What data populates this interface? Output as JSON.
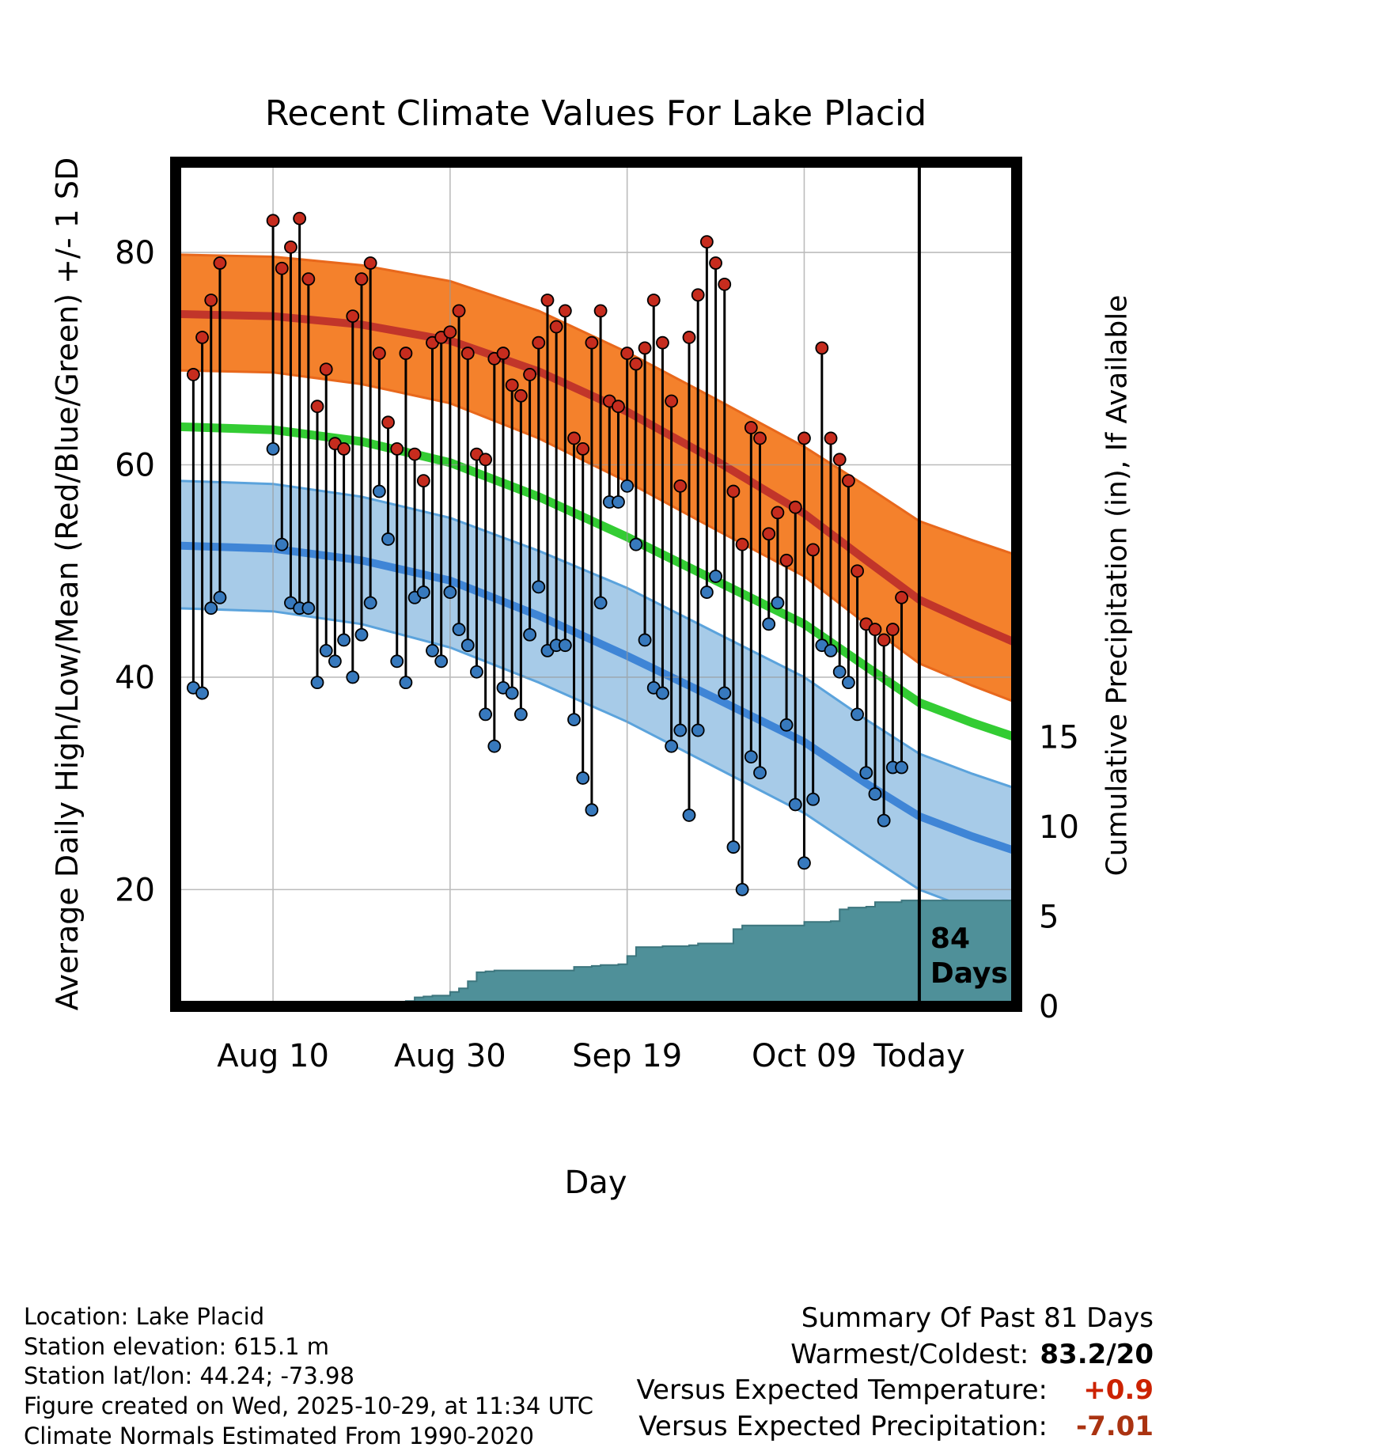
{
  "title": "Recent Climate Values For Lake Placid",
  "axes": {
    "left_label": "Average Daily High/Low/Mean (Red/Blue/Green) +/- 1 SD",
    "right_label": "Cumulative Precipitation (in), If Available",
    "x_label": "Day",
    "left_ticks": [
      20,
      40,
      60,
      80
    ],
    "right_ticks": [
      0,
      5,
      10,
      15
    ],
    "x_ticks": [
      {
        "day": 11,
        "label": "Aug 10"
      },
      {
        "day": 31,
        "label": "Aug 30"
      },
      {
        "day": 51,
        "label": "Sep 19"
      },
      {
        "day": 71,
        "label": "Oct 09"
      },
      {
        "day": 84,
        "label": "Today"
      }
    ]
  },
  "annotation": {
    "line1": "84",
    "line2": "Days",
    "today_day": 84
  },
  "chart_data": {
    "type": "line",
    "title": "Recent Climate Values For Lake Placid",
    "xlabel": "Day",
    "ylabel_left": "Average Daily High/Low/Mean (Red/Blue/Green) +/- 1 SD",
    "ylabel_right": "Cumulative Precipitation (in), If Available",
    "layout": {
      "xlim": [
        0,
        95
      ],
      "ylim_temp": [
        9,
        88.5
      ],
      "ylim_precip": [
        0,
        47
      ],
      "grid": true
    },
    "colors": {
      "high_band": "#f4812c",
      "high_band_edge": "#e8681c",
      "high_mean": "#c1352a",
      "mean_green": "#33cc33",
      "low_band": "#a7cbe8",
      "low_band_edge": "#5ba3dc",
      "low_mean": "#3f85d6",
      "precip_fill": "#4f9099",
      "precip_edge": "#3d767e",
      "scatter_high": "#c62c1e",
      "scatter_low": "#3779bd",
      "dot_stroke": "#000000",
      "grid": "#999999",
      "today_line": "#000000"
    },
    "normals_bands": {
      "days": [
        0,
        11,
        21,
        31,
        41,
        51,
        61,
        71,
        78,
        84,
        90,
        95
      ],
      "high_band_upper": [
        79.8,
        79.6,
        78.8,
        77.3,
        74.5,
        70.6,
        66.2,
        61.7,
        58.0,
        54.7,
        52.9,
        51.5
      ],
      "high_mean": [
        74.2,
        74.0,
        73.2,
        71.7,
        68.8,
        65.0,
        60.4,
        55.4,
        51.0,
        47.3,
        45.0,
        43.2
      ],
      "high_band_lower": [
        68.9,
        68.7,
        67.6,
        65.8,
        62.5,
        58.4,
        53.9,
        49.5,
        45.0,
        41.3,
        39.2,
        37.6
      ],
      "mean_green": [
        63.6,
        63.3,
        62.2,
        60.2,
        57.0,
        53.2,
        49.1,
        45.0,
        41.0,
        37.6,
        35.7,
        34.3
      ],
      "low_band_upper": [
        58.5,
        58.2,
        57.0,
        55.0,
        51.9,
        48.4,
        44.2,
        40.0,
        36.0,
        32.8,
        30.9,
        29.5
      ],
      "low_mean": [
        52.4,
        52.1,
        51.0,
        49.1,
        45.8,
        42.0,
        38.0,
        33.9,
        30.0,
        26.9,
        25.0,
        23.6
      ],
      "low_band_lower": [
        46.5,
        46.2,
        45.0,
        42.8,
        39.5,
        35.8,
        31.5,
        27.2,
        23.3,
        20.0,
        18.1,
        16.7
      ]
    },
    "daily_high_low": [
      [
        2,
        68.5,
        39
      ],
      [
        3,
        72,
        38.5
      ],
      [
        4,
        75.5,
        46.5
      ],
      [
        5,
        79,
        47.5
      ],
      [
        11,
        83,
        61.5
      ],
      [
        12,
        78.5,
        52.5
      ],
      [
        13,
        80.5,
        47
      ],
      [
        14,
        83.2,
        46.5
      ],
      [
        15,
        77.5,
        46.5
      ],
      [
        16,
        65.5,
        39.5
      ],
      [
        17,
        69,
        42.5
      ],
      [
        18,
        62,
        41.5
      ],
      [
        19,
        61.5,
        43.5
      ],
      [
        20,
        74,
        40
      ],
      [
        21,
        77.5,
        44
      ],
      [
        22,
        79,
        47
      ],
      [
        23,
        70.5,
        57.5
      ],
      [
        24,
        64,
        53
      ],
      [
        25,
        61.5,
        41.5
      ],
      [
        26,
        70.5,
        39.5
      ],
      [
        27,
        61,
        47.5
      ],
      [
        28,
        58.5,
        48
      ],
      [
        29,
        71.5,
        42.5
      ],
      [
        30,
        72,
        41.5
      ],
      [
        31,
        72.5,
        48
      ],
      [
        32,
        74.5,
        44.5
      ],
      [
        33,
        70.5,
        43
      ],
      [
        34,
        61,
        40.5
      ],
      [
        35,
        60.5,
        36.5
      ],
      [
        36,
        70,
        33.5
      ],
      [
        37,
        70.5,
        39
      ],
      [
        38,
        67.5,
        38.5
      ],
      [
        39,
        66.5,
        36.5
      ],
      [
        40,
        68.5,
        44
      ],
      [
        41,
        71.5,
        48.5
      ],
      [
        42,
        75.5,
        42.5
      ],
      [
        43,
        73,
        43
      ],
      [
        44,
        74.5,
        43
      ],
      [
        45,
        62.5,
        36
      ],
      [
        46,
        61.5,
        30.5
      ],
      [
        47,
        71.5,
        27.5
      ],
      [
        48,
        74.5,
        47
      ],
      [
        49,
        66,
        56.5
      ],
      [
        50,
        65.5,
        56.5
      ],
      [
        51,
        70.5,
        58
      ],
      [
        52,
        69.5,
        52.5
      ],
      [
        53,
        71,
        43.5
      ],
      [
        54,
        75.5,
        39
      ],
      [
        55,
        71.5,
        38.5
      ],
      [
        56,
        66,
        33.5
      ],
      [
        57,
        58,
        35
      ],
      [
        58,
        72,
        27
      ],
      [
        59,
        76,
        35
      ],
      [
        60,
        81,
        48
      ],
      [
        61,
        79,
        49.5
      ],
      [
        62,
        77,
        38.5
      ],
      [
        63,
        57.5,
        24
      ],
      [
        64,
        52.5,
        20
      ],
      [
        65,
        63.5,
        32.5
      ],
      [
        66,
        62.5,
        31
      ],
      [
        67,
        53.5,
        45
      ],
      [
        68,
        55.5,
        47
      ],
      [
        69,
        51,
        35.5
      ],
      [
        70,
        56,
        28
      ],
      [
        71,
        62.5,
        22.5
      ],
      [
        72,
        52,
        28.5
      ],
      [
        73,
        71,
        43
      ],
      [
        74,
        62.5,
        42.5
      ],
      [
        75,
        60.5,
        40.5
      ],
      [
        76,
        58.5,
        39.5
      ],
      [
        77,
        50,
        36.5
      ],
      [
        78,
        45,
        31
      ],
      [
        79,
        44.5,
        29
      ],
      [
        80,
        43.5,
        26.5
      ],
      [
        81,
        44.5,
        31.5
      ],
      [
        82,
        47.5,
        31.5
      ]
    ],
    "precip_cumulative": [
      [
        0,
        0
      ],
      [
        24,
        0
      ],
      [
        25,
        0.2
      ],
      [
        26,
        0.3
      ],
      [
        27,
        0.5
      ],
      [
        28,
        0.55
      ],
      [
        29,
        0.6
      ],
      [
        31,
        0.8
      ],
      [
        32,
        1.0
      ],
      [
        33,
        1.4
      ],
      [
        34,
        1.9
      ],
      [
        35,
        1.95
      ],
      [
        36,
        2.0
      ],
      [
        44,
        2.0
      ],
      [
        45,
        2.2
      ],
      [
        47,
        2.25
      ],
      [
        48,
        2.3
      ],
      [
        50,
        2.35
      ],
      [
        51,
        2.8
      ],
      [
        52,
        3.3
      ],
      [
        55,
        3.35
      ],
      [
        58,
        3.4
      ],
      [
        59,
        3.5
      ],
      [
        62,
        3.5
      ],
      [
        63,
        4.3
      ],
      [
        64,
        4.5
      ],
      [
        70,
        4.5
      ],
      [
        71,
        4.7
      ],
      [
        74,
        4.75
      ],
      [
        75,
        5.4
      ],
      [
        76,
        5.5
      ],
      [
        78,
        5.55
      ],
      [
        79,
        5.8
      ],
      [
        82,
        5.9
      ],
      [
        95,
        5.9
      ]
    ]
  },
  "footer": {
    "lines": [
      "Location: Lake Placid",
      "Station elevation: 615.1 m",
      "Station lat/lon: 44.24; -73.98",
      "Figure created on Wed, 2025-10-29, at 11:34 UTC",
      "Climate Normals Estimated From 1990-2020"
    ]
  },
  "summary": {
    "title": "Summary Of Past 81 Days",
    "rows": [
      {
        "label": "Warmest/Coldest:",
        "value": "83.2/20",
        "color": "#000000"
      },
      {
        "label": "Versus Expected Temperature:",
        "value": "+0.9",
        "color": "#cc2200"
      },
      {
        "label": "Versus Expected Precipitation:",
        "value": "-7.01",
        "color": "#aa3311"
      }
    ]
  }
}
